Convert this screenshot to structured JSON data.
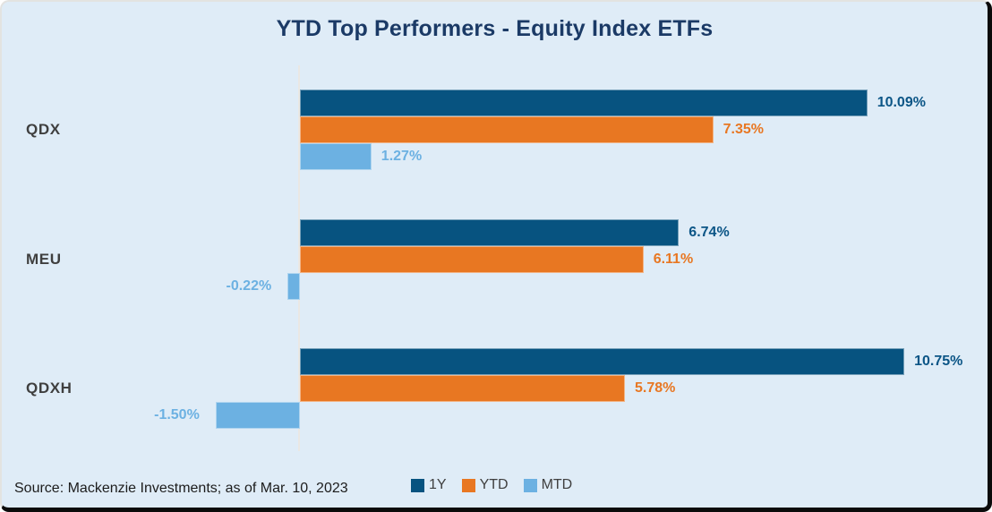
{
  "title": "YTD Top Performers - Equity Index ETFs",
  "source_note": "Source: Mackenzie Investments; as of Mar. 10, 2023",
  "colors": {
    "background": "#DFECF7",
    "title_text": "#1B3A66",
    "category_label_text": "#3F3F3F",
    "axis_line": "#EAE8E4",
    "source_text": "#1C1C1C",
    "legend_text": "#3F3F3F"
  },
  "chart_data": {
    "type": "bar",
    "orientation": "horizontal",
    "title": "YTD Top Performers - Equity Index ETFs",
    "categories": [
      "QDX",
      "MEU",
      "QDXH"
    ],
    "series": [
      {
        "name": "1Y",
        "color": "#075380",
        "label_color": "#0B5586",
        "values": [
          10.09,
          6.74,
          10.75
        ],
        "labels": [
          "10.09%",
          "6.74%",
          "10.75%"
        ]
      },
      {
        "name": "YTD",
        "color": "#E87722",
        "label_color": "#E87722",
        "values": [
          7.35,
          6.11,
          5.78
        ],
        "labels": [
          "7.35%",
          "6.11%",
          "5.78%"
        ]
      },
      {
        "name": "MTD",
        "color": "#6CB1E2",
        "label_color": "#6CB1E2",
        "values": [
          1.27,
          -0.22,
          -1.5
        ],
        "labels": [
          "1.27%",
          "-0.22%",
          "-1.50%"
        ]
      }
    ],
    "xlim": [
      -1.5,
      12.3
    ],
    "grid": false,
    "legend_position": "bottom",
    "value_labels_shown": true
  }
}
